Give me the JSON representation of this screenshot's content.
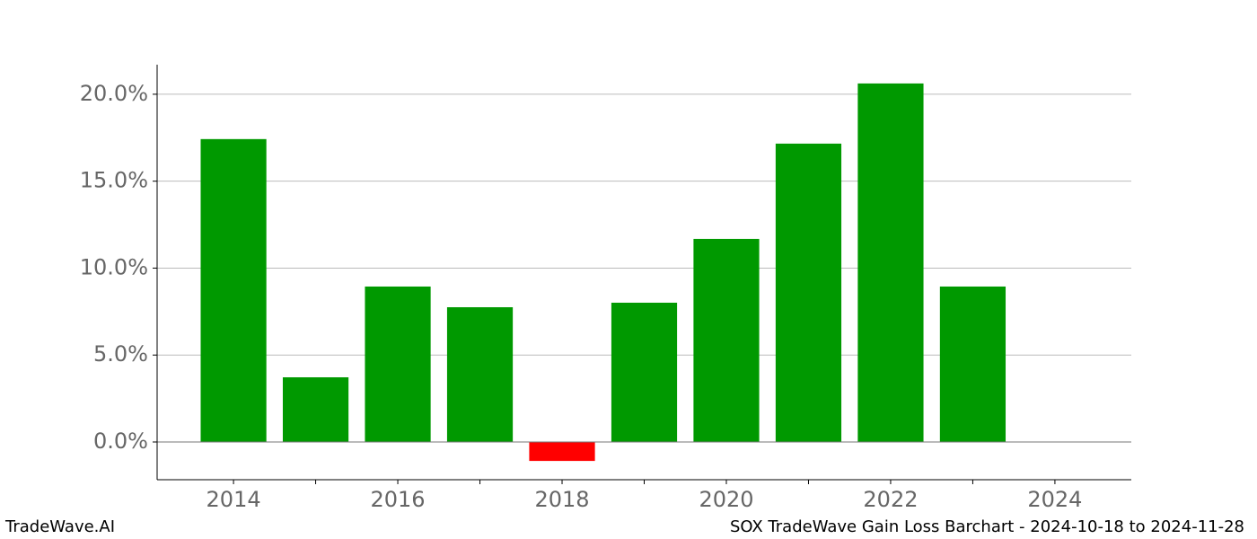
{
  "chart_data": {
    "type": "bar",
    "title": "SOX TradeWave Gain Loss Barchart - 2024-10-18 to 2024-11-28",
    "brand": "TradeWave.AI",
    "x": [
      2014,
      2015,
      2016,
      2017,
      2018,
      2019,
      2020,
      2021,
      2022,
      2023
    ],
    "values": [
      17.42,
      3.72,
      8.94,
      7.75,
      -1.09,
      8.01,
      11.68,
      17.16,
      20.62,
      8.94
    ],
    "positive_color": "#009900",
    "negative_color": "#ff0000",
    "bar_width": 0.8,
    "xlim": [
      2013.07,
      2024.93
    ],
    "xticks": [
      2014,
      2016,
      2018,
      2020,
      2022,
      2024
    ],
    "xminor_ticks": [
      2015,
      2017,
      2019,
      2021,
      2023
    ],
    "ylim": [
      -2.17,
      21.7
    ],
    "yticks": [
      {
        "value": 0,
        "label": "0.0%"
      },
      {
        "value": 5,
        "label": "5.0%"
      },
      {
        "value": 10,
        "label": "10.0%"
      },
      {
        "value": 15,
        "label": "15.0%"
      },
      {
        "value": 20,
        "label": "20.0%"
      }
    ],
    "grid": true,
    "zero_line": true
  }
}
